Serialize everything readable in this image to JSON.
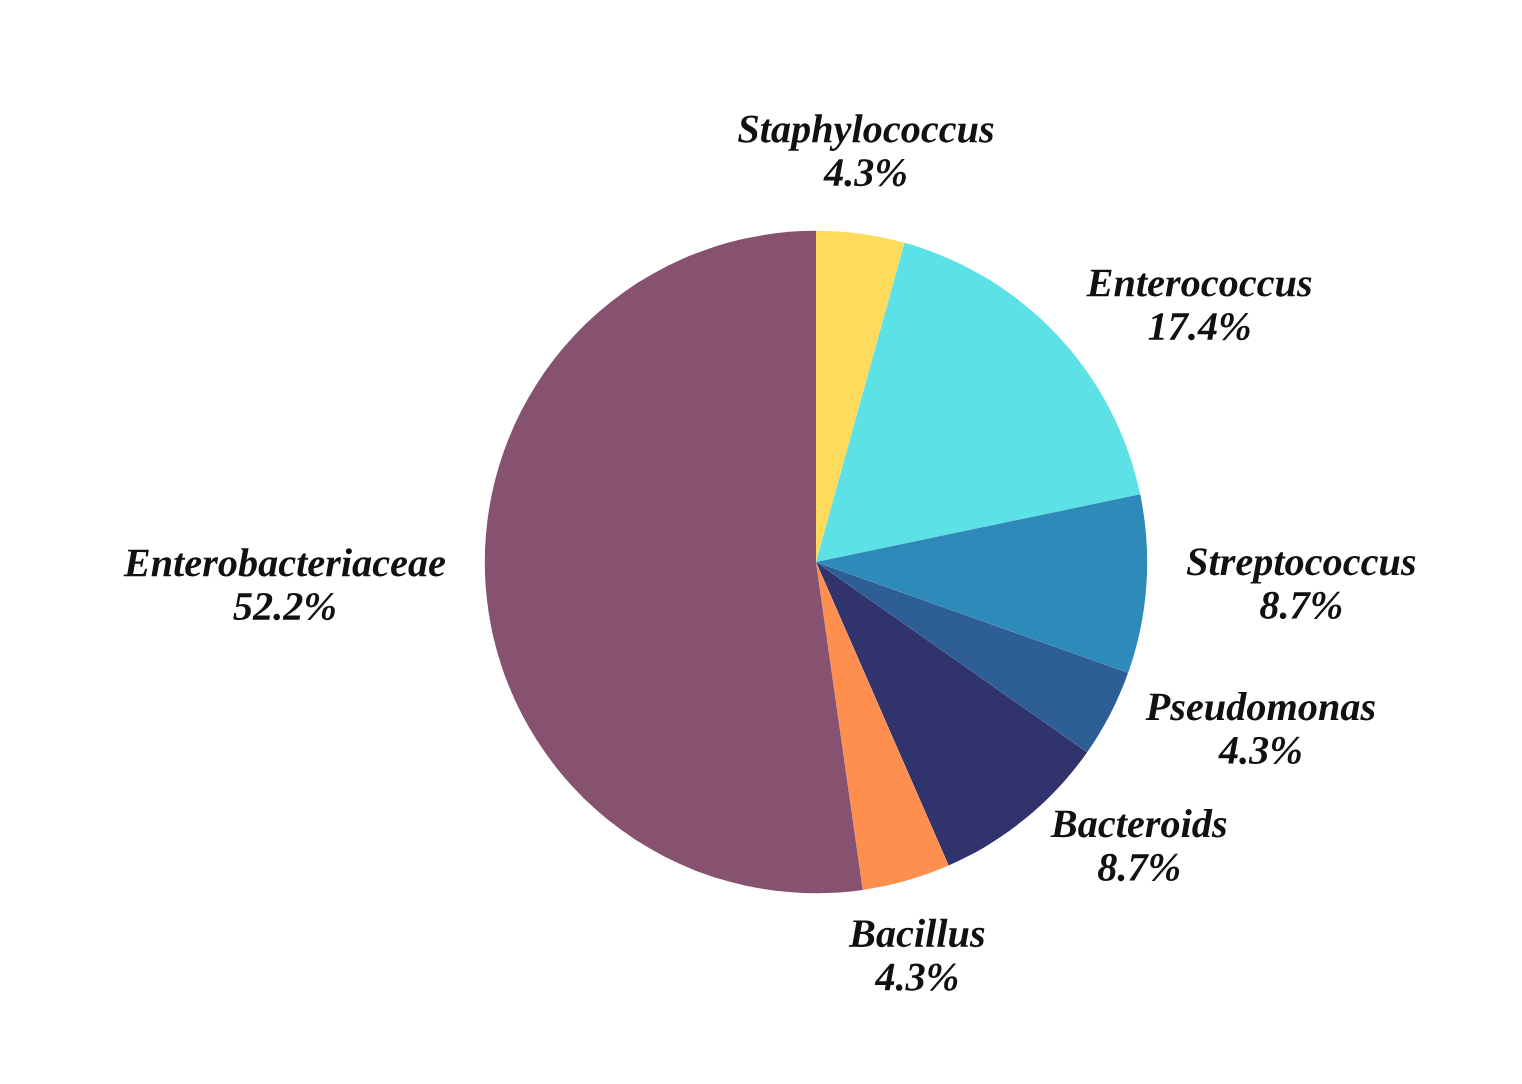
{
  "chart_data": {
    "type": "pie",
    "categories": [
      "Staphylococcus",
      "Enterococcus",
      "Streptococcus",
      "Pseudomonas",
      "Bacteroids",
      "Bacillus",
      "Enterobacteriaceae"
    ],
    "values": [
      4.3,
      17.4,
      8.7,
      4.3,
      8.7,
      4.3,
      52.2
    ],
    "value_labels": [
      "4.3%",
      "17.4%",
      "8.7%",
      "4.3%",
      "8.7%",
      "4.3%",
      "52.2%"
    ],
    "colors": [
      "#fedb5c",
      "#5ce1e6",
      "#2e8ab8",
      "#2e5e96",
      "#31346c",
      "#fe8f4e",
      "#87526f"
    ]
  }
}
